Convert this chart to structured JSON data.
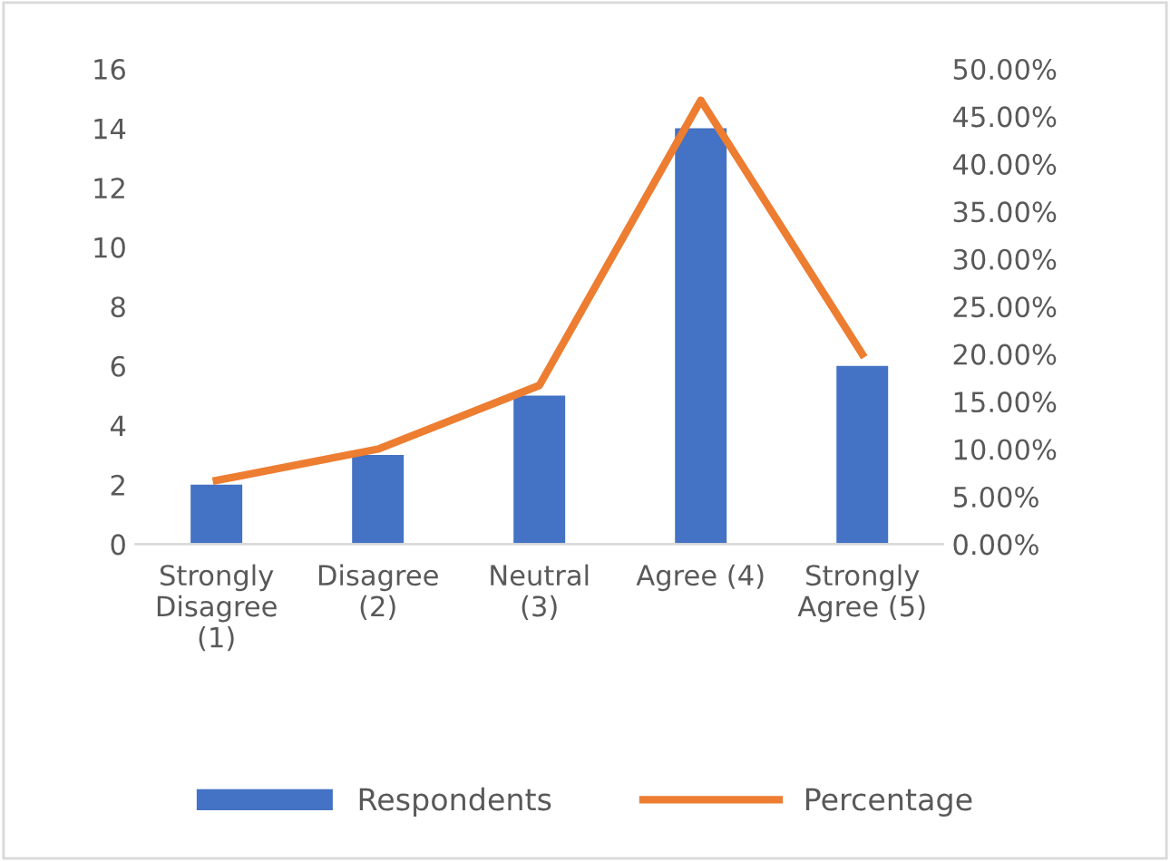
{
  "chart_data": {
    "type": "bar",
    "categories": [
      "Strongly\nDisagree\n(1)",
      "Disagree\n(2)",
      "Neutral\n(3)",
      "Agree (4)",
      "Strongly\nAgree (5)"
    ],
    "series": [
      {
        "name": "Respondents",
        "color": "#4472c4",
        "values": [
          2,
          3,
          5,
          14,
          6
        ]
      },
      {
        "name": "Percentage",
        "type": "line",
        "axis": "y2",
        "color": "#ed7d31",
        "values": [
          6.7,
          10,
          16.7,
          46.7,
          20
        ]
      }
    ],
    "ylim": [
      0,
      16
    ],
    "yticks": [
      0,
      2,
      4,
      6,
      8,
      10,
      12,
      14,
      16
    ],
    "y2lim": [
      0,
      50
    ],
    "y2ticks": [
      {
        "value": 0,
        "label": "0.00%"
      },
      {
        "value": 5,
        "label": "5.00%"
      },
      {
        "value": 10,
        "label": "10.00%"
      },
      {
        "value": 15,
        "label": "15.00%"
      },
      {
        "value": 20,
        "label": "20.00%"
      },
      {
        "value": 25,
        "label": "25.00%"
      },
      {
        "value": 30,
        "label": "30.00%"
      },
      {
        "value": 35,
        "label": "35.00%"
      },
      {
        "value": 40,
        "label": "40.00%"
      },
      {
        "value": 45,
        "label": "45.00%"
      },
      {
        "value": 50,
        "label": "50.00%"
      }
    ],
    "grid": false,
    "legend": "bottom",
    "marker": "none",
    "line_style": "solid"
  }
}
